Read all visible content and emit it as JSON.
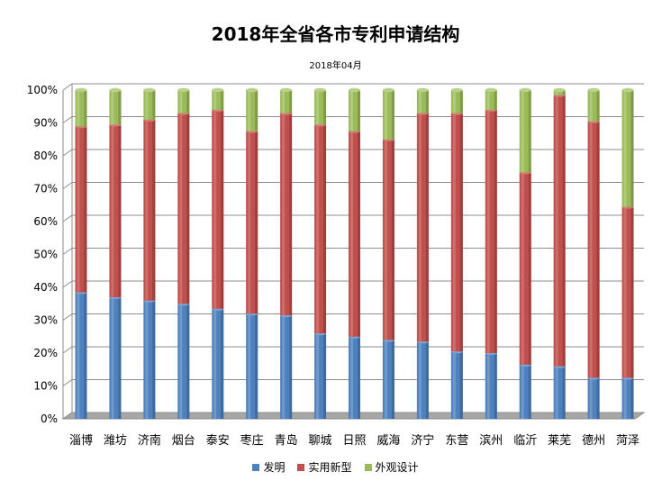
{
  "chart_data": {
    "type": "bar",
    "stacked": "percent",
    "title": "2018年全省各市专利申请结构",
    "subtitle": "2018年04月",
    "categories": [
      "淄博",
      "潍坊",
      "济南",
      "烟台",
      "泰安",
      "枣庄",
      "青岛",
      "聊城",
      "日照",
      "威海",
      "济宁",
      "东营",
      "滨州",
      "临沂",
      "莱芜",
      "德州",
      "菏泽"
    ],
    "series": [
      {
        "name": "发明",
        "color": "#4f81bd",
        "values": [
          38.5,
          37,
          36,
          35,
          33.5,
          32,
          31.5,
          26,
          25,
          24,
          23.5,
          20.5,
          20,
          16.5,
          16,
          12.5,
          12.5
        ]
      },
      {
        "name": "实用新型",
        "color": "#c0504d",
        "values": [
          50.5,
          52.5,
          55,
          58,
          60.5,
          55.5,
          61.5,
          63.5,
          62.5,
          61,
          69.5,
          72.5,
          74,
          58.5,
          82.5,
          78,
          52
        ]
      },
      {
        "name": "外观设计",
        "color": "#9bbb59",
        "values": [
          11,
          10.5,
          9,
          7,
          6,
          12.5,
          7,
          10.5,
          12.5,
          15,
          7,
          7,
          6,
          25,
          1.5,
          9.5,
          35.5
        ]
      }
    ],
    "yticks": [
      "0%",
      "10%",
      "20%",
      "30%",
      "40%",
      "50%",
      "60%",
      "70%",
      "80%",
      "90%",
      "100%"
    ],
    "ylim": [
      0,
      100
    ],
    "grid": true,
    "legend_position": "bottom"
  }
}
